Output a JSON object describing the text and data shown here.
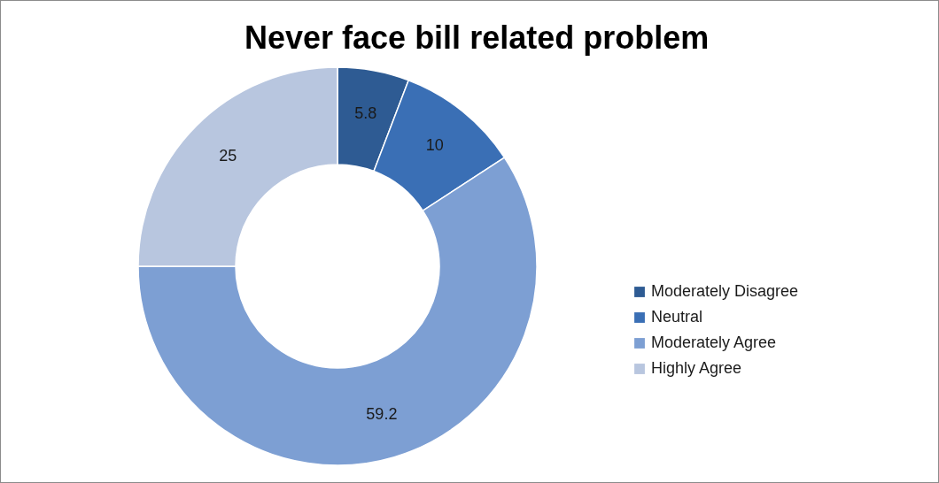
{
  "chart_data": {
    "type": "donut",
    "title": "Never face bill related problem",
    "categories": [
      "Moderately Disagree",
      "Neutral",
      "Moderately Agree",
      "Highly Agree"
    ],
    "values": [
      5.8,
      10,
      59.2,
      25
    ],
    "colors": [
      "#2e5b93",
      "#3a6fb5",
      "#7d9fd3",
      "#b8c6df"
    ],
    "data_labels": true,
    "legend": "right"
  }
}
